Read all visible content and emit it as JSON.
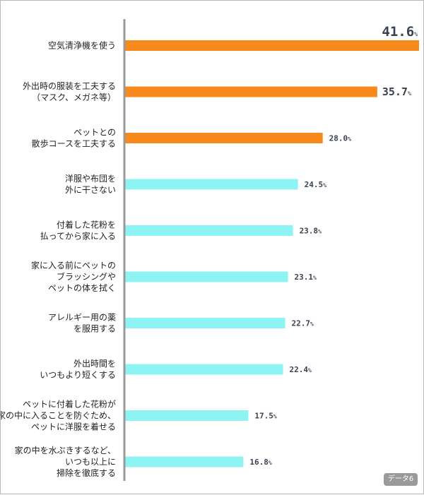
{
  "chart_data": {
    "type": "bar",
    "orientation": "horizontal",
    "xlim": [
      0,
      41.6
    ],
    "grid": false,
    "unit": "%",
    "categories": [
      [
        "空気清浄機を使う"
      ],
      [
        "外出時の服装を工夫する",
        "（マスク、メガネ等）"
      ],
      [
        "ペットとの",
        "散歩コースを工夫する"
      ],
      [
        "洋服や布団を",
        "外に干さない"
      ],
      [
        "付着した花粉を",
        "払ってから家に入る"
      ],
      [
        "家に入る前にペットの",
        "ブラッシングや",
        "ペットの体を拭く"
      ],
      [
        "アレルギー用の薬",
        "を服用する"
      ],
      [
        "外出時間を",
        "いつもより短くする"
      ],
      [
        "ペットに付着した花粉が",
        "家の中に入ることを防ぐため、",
        "ペットに洋服を着せる"
      ],
      [
        "家の中を水ぶきするなど、",
        "いつも以上に",
        "掃除を徹底する"
      ]
    ],
    "values": [
      41.6,
      35.7,
      28.0,
      24.5,
      23.8,
      23.1,
      22.7,
      22.4,
      17.5,
      16.8
    ],
    "value_labels": [
      "41.6",
      "35.7",
      "28.0",
      "24.5",
      "23.8",
      "23.1",
      "22.7",
      "22.4",
      "17.5",
      "16.8"
    ],
    "bar_colors": [
      "#f7891d",
      "#f7891d",
      "#f7891d",
      "#8ef3f3",
      "#8ef3f3",
      "#8ef3f3",
      "#8ef3f3",
      "#8ef3f3",
      "#8ef3f3",
      "#8ef3f3"
    ],
    "value_label_colors": [
      "#e02020",
      "#222222",
      "#3a4150",
      "#3a4150",
      "#3a4150",
      "#3a4150",
      "#3a4150",
      "#3a4150",
      "#3a4150",
      "#3a4150"
    ],
    "axis_color": "#9a9a9a"
  },
  "badge": "データ6"
}
